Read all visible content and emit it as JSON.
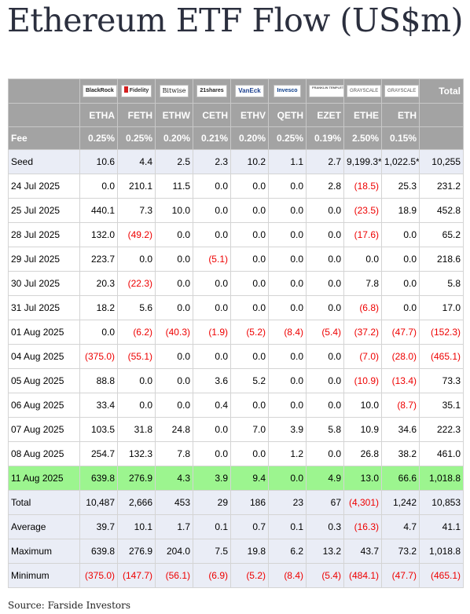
{
  "title": "Ethereum ETF Flow (US$m)",
  "source": "Source: Farside Investors",
  "colors": {
    "header_bg": "#a3a3a3",
    "seed_bg": "#eaedf6",
    "highlight_bg": "#9cf58f",
    "negative": "#ee0000"
  },
  "logos": [
    "BlackRock",
    "Fidelity",
    "Bitwise",
    "21shares",
    "VanEck",
    "Invesco",
    "FRANKLIN TEMPLETON",
    "GRAYSCALE",
    "GRAYSCALE"
  ],
  "total_label": "Total",
  "tickers": [
    "ETHA",
    "FETH",
    "ETHW",
    "CETH",
    "ETHV",
    "QETH",
    "EZET",
    "ETHE",
    "ETH"
  ],
  "fee": {
    "label": "Fee",
    "values": [
      "0.25%",
      "0.25%",
      "0.20%",
      "0.21%",
      "0.20%",
      "0.25%",
      "0.19%",
      "2.50%",
      "0.15%"
    ]
  },
  "rows": [
    {
      "date": "Seed",
      "values": [
        "10.6",
        "4.4",
        "2.5",
        "2.3",
        "10.2",
        "1.1",
        "2.7",
        "9,199.3*",
        "1,022.5*"
      ],
      "total": "10,255",
      "style": "seed"
    },
    {
      "date": "24 Jul 2025",
      "values": [
        "0.0",
        "210.1",
        "11.5",
        "0.0",
        "0.0",
        "0.0",
        "2.8",
        "(18.5)",
        "25.3"
      ],
      "total": "231.2"
    },
    {
      "date": "25 Jul 2025",
      "values": [
        "440.1",
        "7.3",
        "10.0",
        "0.0",
        "0.0",
        "0.0",
        "0.0",
        "(23.5)",
        "18.9"
      ],
      "total": "452.8"
    },
    {
      "date": "28 Jul 2025",
      "values": [
        "132.0",
        "(49.2)",
        "0.0",
        "0.0",
        "0.0",
        "0.0",
        "0.0",
        "(17.6)",
        "0.0"
      ],
      "total": "65.2"
    },
    {
      "date": "29 Jul 2025",
      "values": [
        "223.7",
        "0.0",
        "0.0",
        "(5.1)",
        "0.0",
        "0.0",
        "0.0",
        "0.0",
        "0.0"
      ],
      "total": "218.6"
    },
    {
      "date": "30 Jul 2025",
      "values": [
        "20.3",
        "(22.3)",
        "0.0",
        "0.0",
        "0.0",
        "0.0",
        "0.0",
        "7.8",
        "0.0"
      ],
      "total": "5.8"
    },
    {
      "date": "31 Jul 2025",
      "values": [
        "18.2",
        "5.6",
        "0.0",
        "0.0",
        "0.0",
        "0.0",
        "0.0",
        "(6.8)",
        "0.0"
      ],
      "total": "17.0"
    },
    {
      "date": "01 Aug 2025",
      "values": [
        "0.0",
        "(6.2)",
        "(40.3)",
        "(1.9)",
        "(5.2)",
        "(8.4)",
        "(5.4)",
        "(37.2)",
        "(47.7)"
      ],
      "total": "(152.3)"
    },
    {
      "date": "04 Aug 2025",
      "values": [
        "(375.0)",
        "(55.1)",
        "0.0",
        "0.0",
        "0.0",
        "0.0",
        "0.0",
        "(7.0)",
        "(28.0)"
      ],
      "total": "(465.1)"
    },
    {
      "date": "05 Aug 2025",
      "values": [
        "88.8",
        "0.0",
        "0.0",
        "3.6",
        "5.2",
        "0.0",
        "0.0",
        "(10.9)",
        "(13.4)"
      ],
      "total": "73.3"
    },
    {
      "date": "06 Aug 2025",
      "values": [
        "33.4",
        "0.0",
        "0.0",
        "0.4",
        "0.0",
        "0.0",
        "0.0",
        "10.0",
        "(8.7)"
      ],
      "total": "35.1"
    },
    {
      "date": "07 Aug 2025",
      "values": [
        "103.5",
        "31.8",
        "24.8",
        "0.0",
        "7.0",
        "3.9",
        "5.8",
        "10.9",
        "34.6"
      ],
      "total": "222.3"
    },
    {
      "date": "08 Aug 2025",
      "values": [
        "254.7",
        "132.3",
        "7.8",
        "0.0",
        "0.0",
        "1.2",
        "0.0",
        "26.8",
        "38.2"
      ],
      "total": "461.0"
    },
    {
      "date": "11 Aug 2025",
      "values": [
        "639.8",
        "276.9",
        "4.3",
        "3.9",
        "9.4",
        "0.0",
        "4.9",
        "13.0",
        "66.6"
      ],
      "total": "1,018.8",
      "style": "highlight"
    }
  ],
  "summary": [
    {
      "label": "Total",
      "values": [
        "10,487",
        "2,666",
        "453",
        "29",
        "186",
        "23",
        "67",
        "(4,301)",
        "1,242"
      ],
      "total": "10,853"
    },
    {
      "label": "Average",
      "values": [
        "39.7",
        "10.1",
        "1.7",
        "0.1",
        "0.7",
        "0.1",
        "0.3",
        "(16.3)",
        "4.7"
      ],
      "total": "41.1"
    },
    {
      "label": "Maximum",
      "values": [
        "639.8",
        "276.9",
        "204.0",
        "7.5",
        "19.8",
        "6.2",
        "13.2",
        "43.7",
        "73.2"
      ],
      "total": "1,018.8"
    },
    {
      "label": "Minimum",
      "values": [
        "(375.0)",
        "(147.7)",
        "(56.1)",
        "(6.9)",
        "(5.2)",
        "(8.4)",
        "(5.4)",
        "(484.1)",
        "(47.7)"
      ],
      "total": "(465.1)"
    }
  ]
}
